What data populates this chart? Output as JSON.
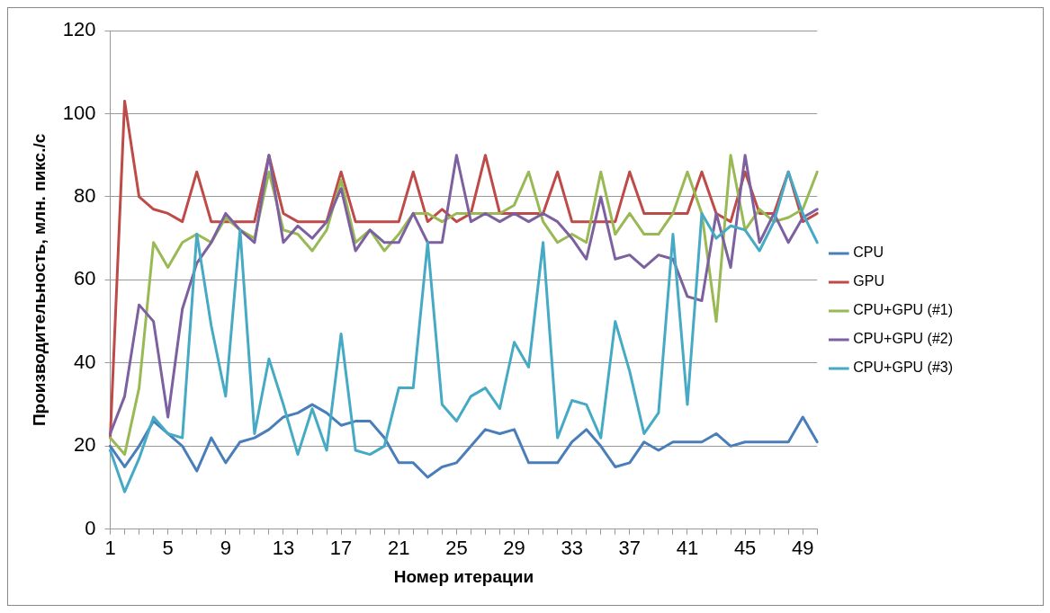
{
  "chart_data": {
    "type": "line",
    "xlabel": "Номер итерации",
    "ylabel": "Производительность, млн. пикс./с",
    "categories": [
      "1",
      null,
      null,
      null,
      "5",
      null,
      null,
      null,
      "9",
      null,
      null,
      null,
      "13",
      null,
      null,
      null,
      "17",
      null,
      null,
      null,
      "21",
      null,
      null,
      null,
      "25",
      null,
      null,
      null,
      "29",
      null,
      null,
      null,
      "33",
      null,
      null,
      null,
      "37",
      null,
      null,
      null,
      "41",
      null,
      null,
      null,
      "45",
      null,
      null,
      null,
      "49",
      null
    ],
    "ylim": [
      0,
      120
    ],
    "yticks": [
      0,
      20,
      40,
      60,
      80,
      100,
      120
    ],
    "grid": "y",
    "legend": "right",
    "marker": "none",
    "line_style": "solid",
    "series": [
      {
        "name": "CPU",
        "color": "#4a7ebb",
        "values": [
          20,
          15,
          20,
          26,
          23,
          20,
          14,
          22,
          16,
          21,
          22,
          24,
          27,
          28,
          30,
          28,
          25,
          26,
          26,
          22,
          16,
          16,
          12.5,
          15,
          16,
          20,
          24,
          23,
          24,
          16,
          16,
          16,
          21,
          24,
          20,
          15,
          16,
          21,
          19,
          21,
          21,
          21,
          23,
          20,
          21,
          21,
          21,
          21,
          27,
          21
        ]
      },
      {
        "name": "GPU",
        "color": "#be4b48",
        "values": [
          22,
          103,
          80,
          77,
          76,
          74,
          86,
          74,
          74,
          74,
          74,
          90,
          76,
          74,
          74,
          74,
          86,
          74,
          74,
          74,
          74,
          86,
          74,
          77,
          74,
          76,
          90,
          76,
          76,
          76,
          76,
          86,
          74,
          74,
          74,
          74,
          86,
          76,
          76,
          76,
          76,
          86,
          76,
          74,
          86,
          76,
          76,
          86,
          74,
          76
        ]
      },
      {
        "name": "CPU+GPU (#1)",
        "color": "#98b954",
        "values": [
          22,
          18,
          34,
          69,
          63,
          69,
          71,
          69,
          75,
          72,
          70,
          86,
          72,
          71,
          67,
          72,
          84,
          69,
          72,
          67,
          71,
          76,
          76,
          74,
          76,
          76,
          76,
          76,
          78,
          86,
          74,
          69,
          71,
          69,
          86,
          71,
          76,
          71,
          71,
          76,
          86,
          76,
          50,
          90,
          72,
          77,
          74,
          75,
          77,
          86
        ]
      },
      {
        "name": "CPU+GPU (#2)",
        "color": "#7d60a0",
        "values": [
          23,
          32,
          54,
          50,
          27,
          53,
          64,
          69,
          76,
          72,
          69,
          90,
          69,
          73,
          70,
          74,
          82,
          67,
          72,
          69,
          69,
          76,
          69,
          69,
          90,
          74,
          76,
          74,
          76,
          74,
          76,
          74,
          70,
          65,
          80,
          65,
          66,
          63,
          66,
          65,
          56,
          55,
          76,
          63,
          90,
          69,
          76,
          69,
          75,
          77
        ]
      },
      {
        "name": "CPU+GPU (#3)",
        "color": "#46aac5",
        "values": [
          19,
          9,
          17,
          27,
          23,
          22,
          71,
          49,
          32,
          72,
          23,
          41,
          30,
          18,
          29,
          19,
          47,
          19,
          18,
          20,
          34,
          34,
          69,
          30,
          26,
          32,
          34,
          29,
          45,
          39,
          69,
          22,
          31,
          30,
          22,
          50,
          38,
          23,
          28,
          71,
          30,
          76,
          70,
          73,
          72,
          67,
          74,
          86,
          76,
          69
        ]
      }
    ]
  }
}
